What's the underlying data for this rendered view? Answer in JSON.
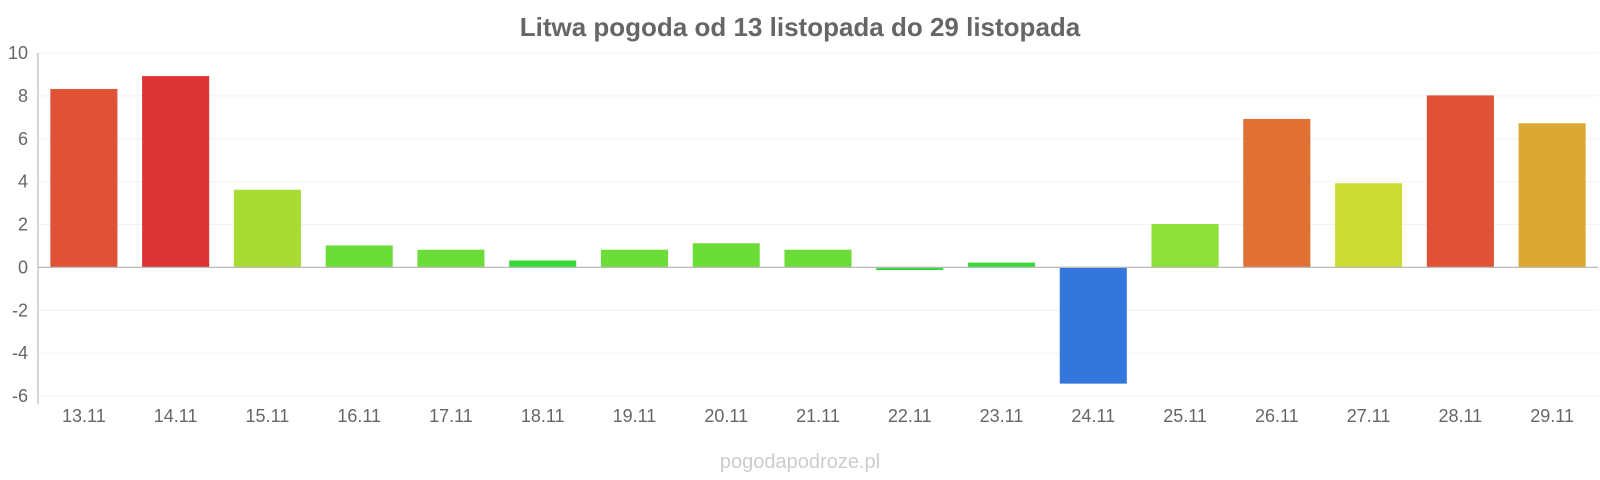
{
  "watermark": "pogodapodroze.pl",
  "chart_data": {
    "type": "bar",
    "title": "Litwa pogoda od 13 listopada do 29 listopada",
    "xlabel": "",
    "ylabel": "",
    "ylim": [
      -6,
      10
    ],
    "yticks": [
      -6,
      -4,
      -2,
      0,
      2,
      4,
      6,
      8,
      10
    ],
    "grid": true,
    "legend": "none",
    "categories": [
      "13.11",
      "14.11",
      "15.11",
      "16.11",
      "17.11",
      "18.11",
      "19.11",
      "20.11",
      "21.11",
      "22.11",
      "23.11",
      "24.11",
      "25.11",
      "26.11",
      "27.11",
      "28.11",
      "29.11"
    ],
    "values": [
      8.3,
      8.9,
      3.6,
      1.0,
      0.8,
      0.3,
      0.8,
      1.1,
      0.8,
      -0.1,
      0.2,
      -5.4,
      2.0,
      6.9,
      3.9,
      8.0,
      6.7
    ],
    "colors": [
      "#e05236",
      "#dc3434",
      "#a8dc34",
      "#6cdc38",
      "#6cdc38",
      "#38d838",
      "#6cdc38",
      "#6cdc38",
      "#6cdc38",
      "#38d838",
      "#38d838",
      "#3476dc",
      "#8ce038",
      "#e07034",
      "#ccdc34",
      "#e05236",
      "#dca834"
    ]
  }
}
